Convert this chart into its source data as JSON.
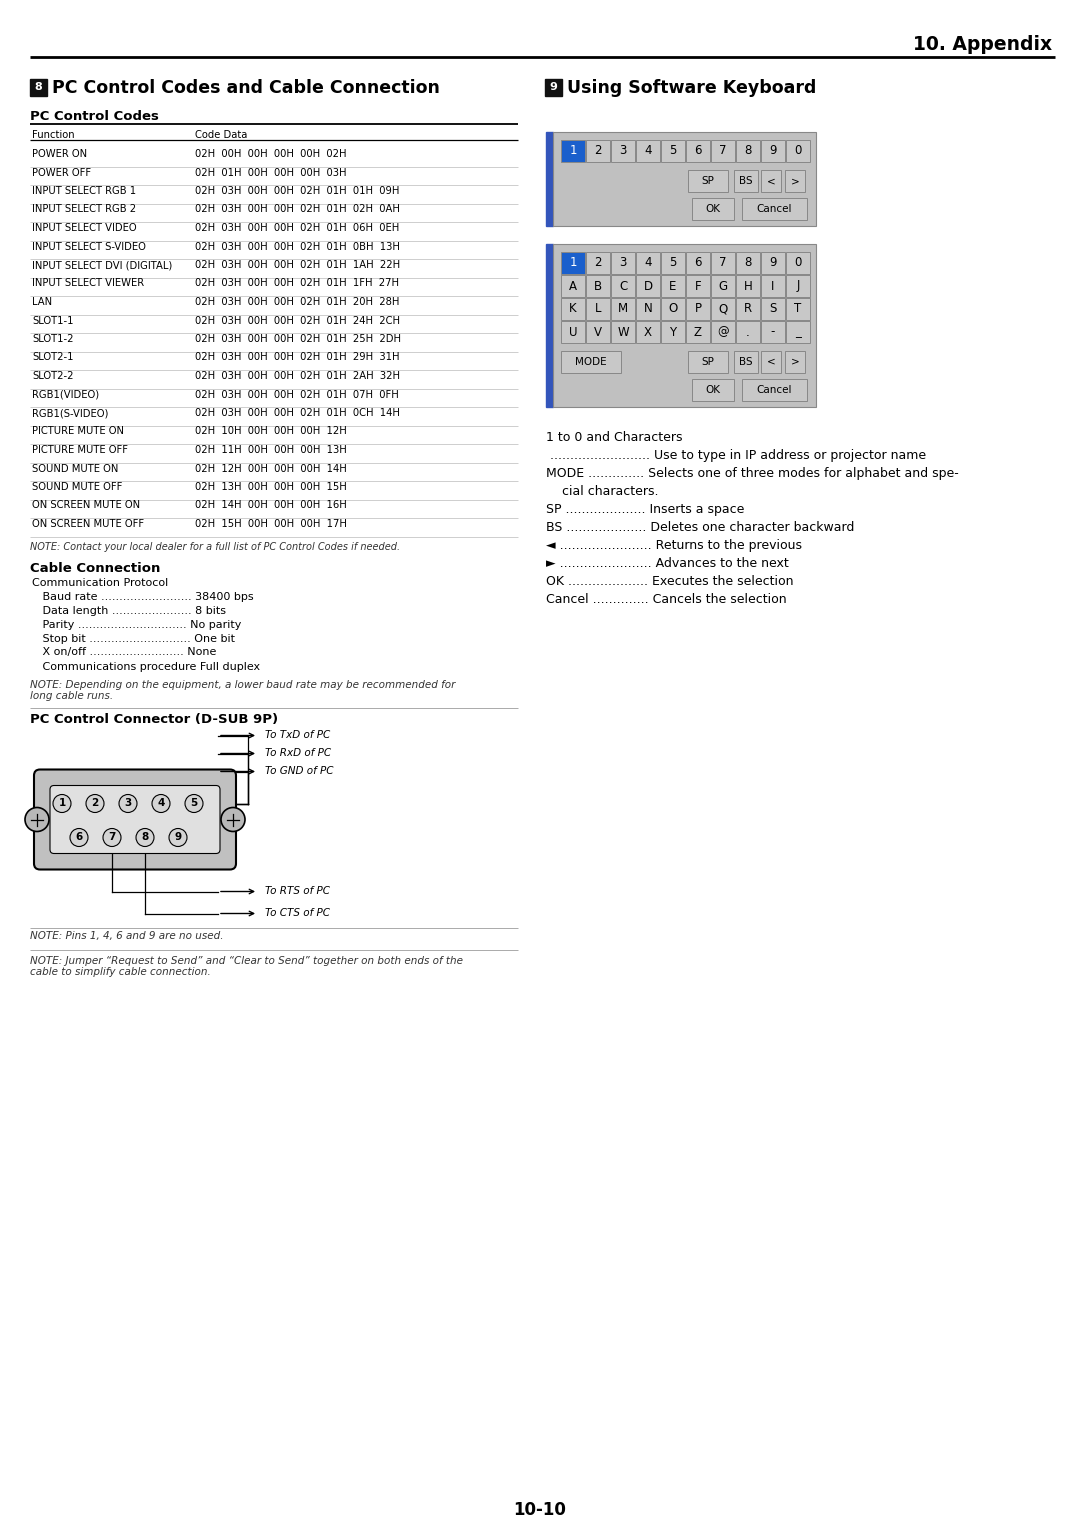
{
  "title_appendix": "10. Appendix",
  "section8_title": "PC Control Codes and Cable Connection",
  "section9_title": "Using Software Keyboard",
  "section8_num": "8",
  "section9_num": "9",
  "pc_control_codes_title": "PC Control Codes",
  "table_header": [
    "Function",
    "Code Data"
  ],
  "table_rows": [
    [
      "POWER ON",
      "02H  00H  00H  00H  00H  02H"
    ],
    [
      "POWER OFF",
      "02H  01H  00H  00H  00H  03H"
    ],
    [
      "INPUT SELECT RGB 1",
      "02H  03H  00H  00H  02H  01H  01H  09H"
    ],
    [
      "INPUT SELECT RGB 2",
      "02H  03H  00H  00H  02H  01H  02H  0AH"
    ],
    [
      "INPUT SELECT VIDEO",
      "02H  03H  00H  00H  02H  01H  06H  0EH"
    ],
    [
      "INPUT SELECT S-VIDEO",
      "02H  03H  00H  00H  02H  01H  0BH  13H"
    ],
    [
      "INPUT SELECT DVI (DIGITAL)",
      "02H  03H  00H  00H  02H  01H  1AH  22H"
    ],
    [
      "INPUT SELECT VIEWER",
      "02H  03H  00H  00H  02H  01H  1FH  27H"
    ],
    [
      "LAN",
      "02H  03H  00H  00H  02H  01H  20H  28H"
    ],
    [
      "SLOT1-1",
      "02H  03H  00H  00H  02H  01H  24H  2CH"
    ],
    [
      "SLOT1-2",
      "02H  03H  00H  00H  02H  01H  25H  2DH"
    ],
    [
      "SLOT2-1",
      "02H  03H  00H  00H  02H  01H  29H  31H"
    ],
    [
      "SLOT2-2",
      "02H  03H  00H  00H  02H  01H  2AH  32H"
    ],
    [
      "RGB1(VIDEO)",
      "02H  03H  00H  00H  02H  01H  07H  0FH"
    ],
    [
      "RGB1(S-VIDEO)",
      "02H  03H  00H  00H  02H  01H  0CH  14H"
    ],
    [
      "PICTURE MUTE ON",
      "02H  10H  00H  00H  00H  12H"
    ],
    [
      "PICTURE MUTE OFF",
      "02H  11H  00H  00H  00H  13H"
    ],
    [
      "SOUND MUTE ON",
      "02H  12H  00H  00H  00H  14H"
    ],
    [
      "SOUND MUTE OFF",
      "02H  13H  00H  00H  00H  15H"
    ],
    [
      "ON SCREEN MUTE ON",
      "02H  14H  00H  00H  00H  16H"
    ],
    [
      "ON SCREEN MUTE OFF",
      "02H  15H  00H  00H  00H  17H"
    ]
  ],
  "table_note": "NOTE: Contact your local dealer for a full list of PC Control Codes if needed.",
  "cable_connection_title": "Cable Connection",
  "communication_protocol_title": "Communication Protocol",
  "comm_items": [
    [
      "   Baud rate .........................",
      " 38400 bps"
    ],
    [
      "   Data length ......................",
      " 8 bits"
    ],
    [
      "   Parity ..............................",
      " No parity"
    ],
    [
      "   Stop bit ............................",
      " One bit"
    ],
    [
      "   X on/off ..........................",
      " None"
    ],
    [
      "   Communications procedure",
      " Full duplex"
    ]
  ],
  "cable_note": "NOTE: Depending on the equipment, a lower baud rate may be recommended for\nlong cable runs.",
  "connector_title": "PC Control Connector (D-SUB 9P)",
  "pin_note1": "NOTE: Pins 1, 4, 6 and 9 are no used.",
  "pin_note2": "NOTE: Jumper “Request to Send” and “Clear to Send” together on both ends of the\ncable to simplify cable connection.",
  "kb_row1": [
    "1",
    "2",
    "3",
    "4",
    "5",
    "6",
    "7",
    "8",
    "9",
    "0"
  ],
  "kb_alpha_row1": [
    "A",
    "B",
    "C",
    "D",
    "E",
    "F",
    "G",
    "H",
    "I",
    "J"
  ],
  "kb_alpha_row2": [
    "K",
    "L",
    "M",
    "N",
    "O",
    "P",
    "Q",
    "R",
    "S",
    "T"
  ],
  "kb_alpha_row3": [
    "U",
    "V",
    "W",
    "X",
    "Y",
    "Z",
    "@",
    ".",
    "-",
    "_"
  ],
  "sw_kb_descriptions": [
    [
      "1 to 0 and Characters",
      ""
    ],
    [
      " .........................",
      " Use to type in IP address or projector name"
    ],
    [
      "MODE ..............",
      " Selects one of three modes for alphabet and spe-"
    ],
    [
      "",
      "    cial characters."
    ],
    [
      "SP ....................",
      " Inserts a space"
    ],
    [
      "BS ....................",
      " Deletes one character backward"
    ],
    [
      "◄ .......................",
      " Returns to the previous"
    ],
    [
      "► .......................",
      " Advances to the next"
    ],
    [
      "OK ....................",
      " Executes the selection"
    ],
    [
      "Cancel ..............",
      " Cancels the selection"
    ]
  ],
  "page_number": "10-10",
  "bg_color": "#ffffff",
  "kb_selected_bg": "#1a5fcc",
  "kb_bg": "#c8c8c8",
  "kb_border": "#888888",
  "kb_blue_bar": "#3355bb"
}
